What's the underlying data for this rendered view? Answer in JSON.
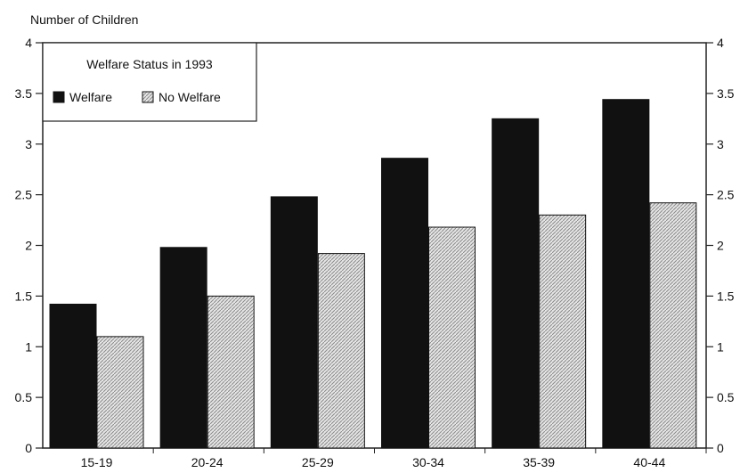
{
  "chart_data": {
    "type": "bar",
    "ylabel": "Number of Children",
    "ylim": [
      0,
      4
    ],
    "yticks": [
      "0",
      "0.5",
      "1",
      "1.5",
      "2",
      "2.5",
      "3",
      "3.5",
      "4"
    ],
    "categories": [
      "15-19",
      "20-24",
      "25-29",
      "30-34",
      "35-39",
      "40-44"
    ],
    "legend": {
      "title": "Welfare Status in 1993",
      "position": "top-left"
    },
    "series": [
      {
        "name": "Welfare",
        "color": "#111111",
        "values": [
          1.42,
          1.98,
          2.48,
          2.86,
          3.25,
          3.44
        ]
      },
      {
        "name": "No Welfare",
        "color": "#d9d9d9",
        "values": [
          1.1,
          1.5,
          1.92,
          2.18,
          2.3,
          2.42
        ]
      }
    ]
  }
}
